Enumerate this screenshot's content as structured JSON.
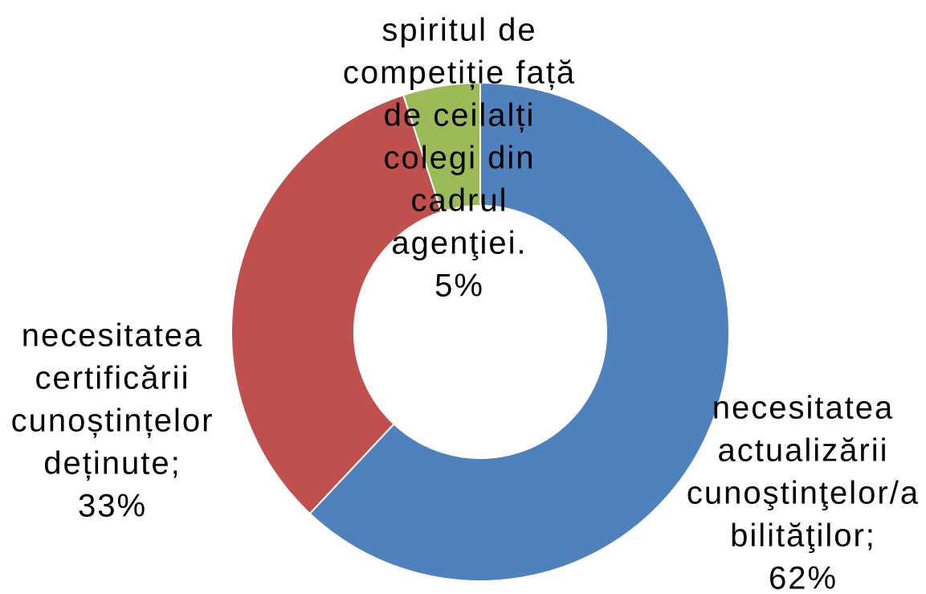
{
  "chart_data": {
    "type": "donut",
    "categories": [
      [
        "necesitatea",
        "actualizării",
        "cunoştinţelor/a",
        "bilităţilor;"
      ],
      [
        "necesitatea",
        "certificării",
        "cunoștințelor",
        "deținute;"
      ],
      [
        "spiritul de",
        "competiție față",
        "de ceilalți",
        "colegi din",
        "cadrul",
        "agenţiei."
      ]
    ],
    "values": [
      62,
      33,
      5
    ],
    "value_labels": [
      "62%",
      "33%",
      "5%"
    ],
    "colors": [
      "#4f81bd",
      "#c0504d",
      "#9bbb59"
    ]
  }
}
